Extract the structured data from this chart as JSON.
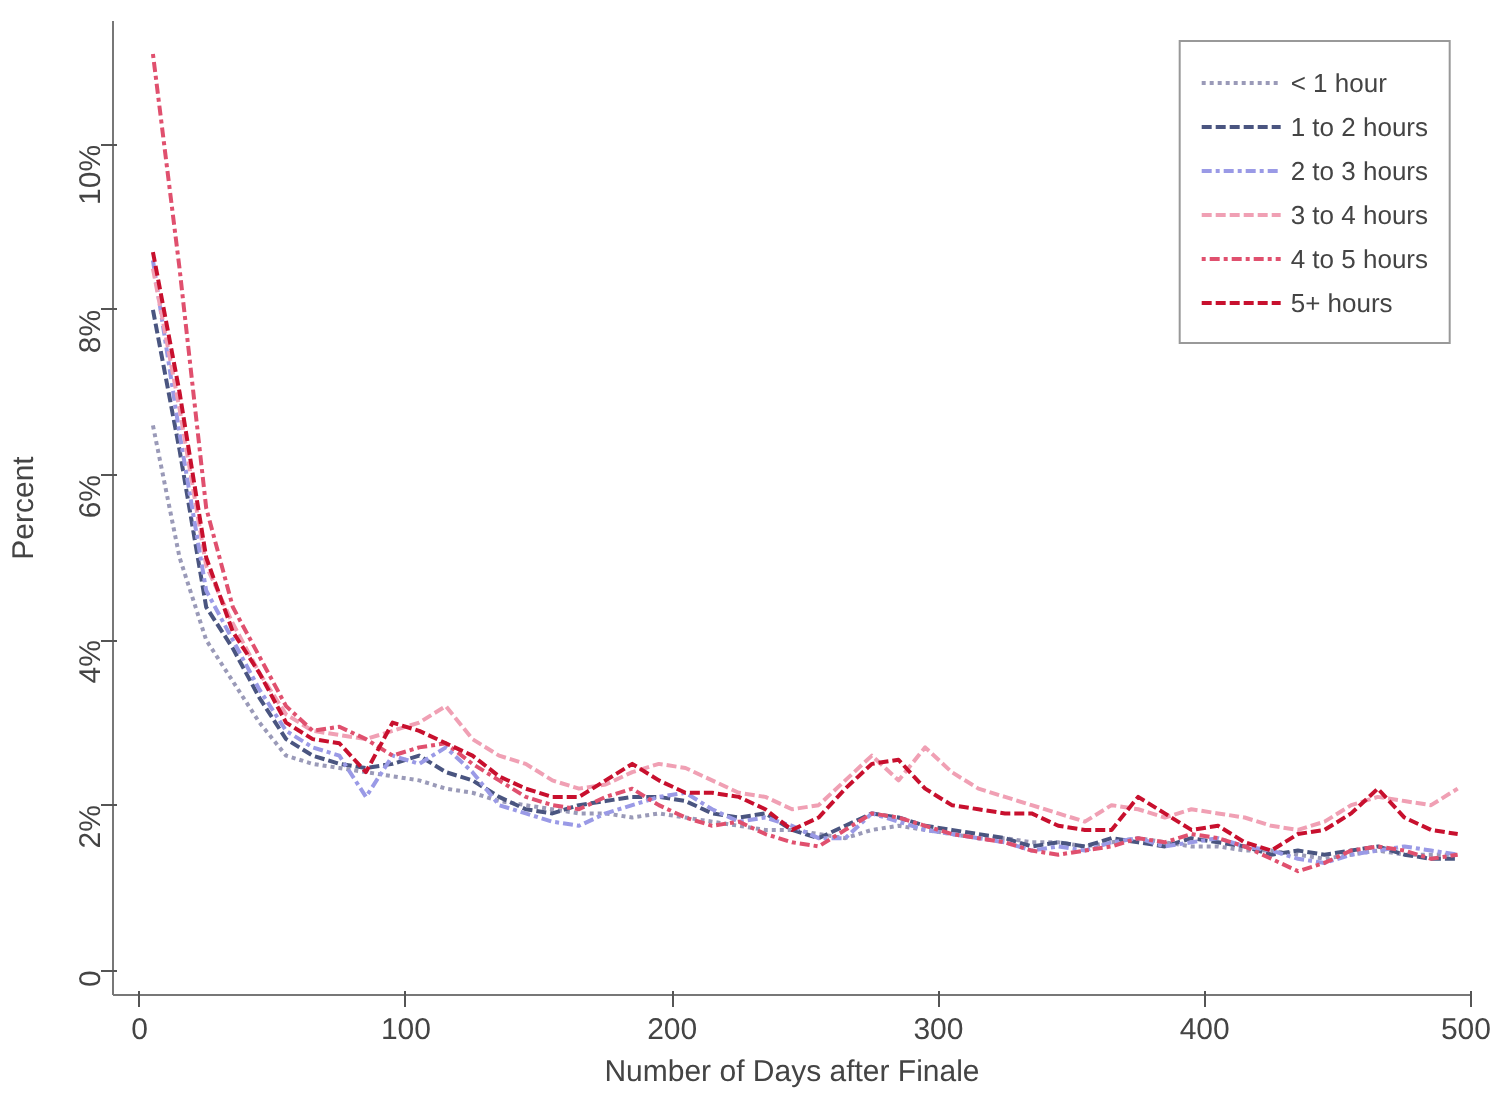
{
  "chart_data": {
    "type": "line",
    "xlabel": "Number of Days after Finale",
    "ylabel": "Percent",
    "x": [
      5,
      15,
      25,
      35,
      45,
      55,
      65,
      75,
      85,
      95,
      105,
      115,
      125,
      135,
      145,
      155,
      165,
      175,
      185,
      195,
      205,
      215,
      225,
      235,
      245,
      255,
      265,
      275,
      285,
      295,
      305,
      315,
      325,
      335,
      345,
      355,
      365,
      375,
      385,
      395,
      405,
      415,
      425,
      435,
      445,
      455,
      465,
      475,
      485,
      495
    ],
    "series": [
      {
        "name": "< 1 hour",
        "color": "#9a9ab8",
        "line_style": "dotted",
        "values": [
          6.6,
          5.0,
          4.0,
          3.5,
          3.0,
          2.6,
          2.5,
          2.45,
          2.4,
          2.35,
          2.3,
          2.2,
          2.15,
          2.05,
          2.0,
          1.95,
          1.9,
          1.9,
          1.85,
          1.9,
          1.85,
          1.8,
          1.75,
          1.7,
          1.7,
          1.65,
          1.6,
          1.7,
          1.75,
          1.7,
          1.65,
          1.6,
          1.6,
          1.55,
          1.55,
          1.5,
          1.55,
          1.6,
          1.55,
          1.5,
          1.5,
          1.45,
          1.45,
          1.4,
          1.35,
          1.4,
          1.45,
          1.4,
          1.4,
          1.4
        ]
      },
      {
        "name": "1 to 2 hours",
        "color": "#4a5580",
        "line_style": "dashed",
        "values": [
          8.0,
          6.3,
          4.4,
          3.9,
          3.3,
          2.8,
          2.6,
          2.5,
          2.45,
          2.5,
          2.6,
          2.4,
          2.3,
          2.1,
          1.95,
          1.9,
          2.0,
          2.05,
          2.1,
          2.1,
          2.05,
          1.9,
          1.85,
          1.9,
          1.7,
          1.6,
          1.75,
          1.9,
          1.85,
          1.75,
          1.7,
          1.65,
          1.6,
          1.5,
          1.55,
          1.5,
          1.6,
          1.55,
          1.5,
          1.6,
          1.55,
          1.5,
          1.4,
          1.45,
          1.4,
          1.45,
          1.5,
          1.4,
          1.35,
          1.35
        ]
      },
      {
        "name": "2 to 3 hours",
        "color": "#9a9ae6",
        "line_style": "dashdot",
        "values": [
          8.6,
          6.5,
          4.6,
          4.0,
          3.4,
          2.9,
          2.7,
          2.6,
          2.1,
          2.6,
          2.5,
          2.7,
          2.4,
          2.0,
          1.9,
          1.8,
          1.75,
          1.9,
          2.0,
          2.1,
          2.15,
          1.95,
          1.8,
          1.85,
          1.75,
          1.6,
          1.6,
          1.9,
          1.8,
          1.7,
          1.65,
          1.6,
          1.55,
          1.45,
          1.5,
          1.45,
          1.55,
          1.6,
          1.5,
          1.55,
          1.6,
          1.5,
          1.45,
          1.35,
          1.3,
          1.4,
          1.45,
          1.5,
          1.45,
          1.4
        ]
      },
      {
        "name": "3 to 4 hours",
        "color": "#f0a0b4",
        "line_style": "dashed",
        "values": [
          8.5,
          6.8,
          4.9,
          4.2,
          3.6,
          3.1,
          2.9,
          2.85,
          2.8,
          2.9,
          3.0,
          3.2,
          2.8,
          2.6,
          2.5,
          2.3,
          2.2,
          2.25,
          2.4,
          2.5,
          2.45,
          2.3,
          2.15,
          2.1,
          1.95,
          2.0,
          2.3,
          2.6,
          2.3,
          2.7,
          2.4,
          2.2,
          2.1,
          2.0,
          1.9,
          1.8,
          2.0,
          1.95,
          1.85,
          1.95,
          1.9,
          1.85,
          1.75,
          1.7,
          1.8,
          2.0,
          2.1,
          2.05,
          2.0,
          2.2
        ]
      },
      {
        "name": "4 to 5 hours",
        "color": "#e0506e",
        "line_style": "dotdash",
        "values": [
          11.1,
          8.5,
          5.6,
          4.4,
          3.8,
          3.2,
          2.9,
          2.95,
          2.8,
          2.6,
          2.7,
          2.75,
          2.5,
          2.3,
          2.1,
          2.0,
          1.95,
          2.1,
          2.2,
          2.0,
          1.85,
          1.75,
          1.8,
          1.65,
          1.55,
          1.5,
          1.7,
          1.9,
          1.85,
          1.75,
          1.65,
          1.6,
          1.55,
          1.45,
          1.4,
          1.45,
          1.5,
          1.6,
          1.55,
          1.65,
          1.6,
          1.5,
          1.35,
          1.2,
          1.3,
          1.45,
          1.5,
          1.45,
          1.35,
          1.4
        ]
      },
      {
        "name": "5+ hours",
        "color": "#c8102e",
        "line_style": "dashed",
        "values": [
          8.7,
          7.0,
          5.0,
          4.1,
          3.6,
          3.0,
          2.8,
          2.75,
          2.4,
          3.0,
          2.9,
          2.75,
          2.6,
          2.35,
          2.2,
          2.1,
          2.1,
          2.3,
          2.5,
          2.3,
          2.15,
          2.15,
          2.1,
          1.95,
          1.7,
          1.85,
          2.2,
          2.5,
          2.55,
          2.2,
          2.0,
          1.95,
          1.9,
          1.9,
          1.75,
          1.7,
          1.7,
          2.1,
          1.9,
          1.7,
          1.75,
          1.55,
          1.45,
          1.65,
          1.7,
          1.9,
          2.2,
          1.85,
          1.7,
          1.65
        ]
      }
    ],
    "xlim": [
      -10,
      500
    ],
    "ylim": [
      -0.3,
      11.5
    ],
    "xticks": [
      0,
      100,
      200,
      300,
      400,
      500
    ],
    "yticks": [
      0,
      {
        "value": 2,
        "label": "2%"
      },
      {
        "value": 4,
        "label": "4%"
      },
      {
        "value": 6,
        "label": "6%"
      },
      {
        "value": 8,
        "label": "8%"
      },
      {
        "value": 10,
        "label": "10%"
      }
    ],
    "grid": false,
    "legend": "top right"
  }
}
